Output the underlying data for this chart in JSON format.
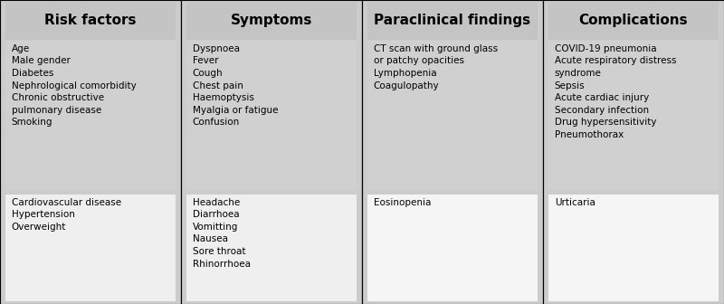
{
  "columns": [
    {
      "header": "Risk factors",
      "box1_inner_color": "#d0d0d0",
      "box1_text": "Age\nMale gender\nDiabetes\nNephrological comorbidity\nChronic obstructive\npulmonary disease\nSmoking",
      "box2_inner_color": "#efefef",
      "box2_text": "Cardiovascular disease\nHypertension\nOverweight"
    },
    {
      "header": "Symptoms",
      "box1_inner_color": "#d0d0d0",
      "box1_text": "Dyspnoea\nFever\nCough\nChest pain\nHaemoptysis\nMyalgia or fatigue\nConfusion",
      "box2_inner_color": "#efefef",
      "box2_text": "Headache\nDiarrhoea\nVomitting\nNausea\nSore throat\nRhinorrhoea"
    },
    {
      "header": "Paraclinical findings",
      "box1_inner_color": "#d0d0d0",
      "box1_text": "CT scan with ground glass\nor patchy opacities\nLymphopenia\nCoagulopathy",
      "box2_inner_color": "#f5f5f5",
      "box2_text": "Eosinopenia"
    },
    {
      "header": "Complications",
      "box1_inner_color": "#d0d0d0",
      "box1_text": "COVID-19 pneumonia\nAcute respiratory distress\nsyndrome\nSepsis\nAcute cardiac injury\nSecondary infection\nDrug hypersensitivity\nPneumothorax",
      "box2_inner_color": "#f5f5f5",
      "box2_text": "Urticaria"
    }
  ],
  "background_color": "#cccccc",
  "header_bg": "#c4c4c4",
  "fig_width": 8.0,
  "fig_height": 3.36,
  "text_fontsize": 7.5,
  "header_fontsize": 11
}
